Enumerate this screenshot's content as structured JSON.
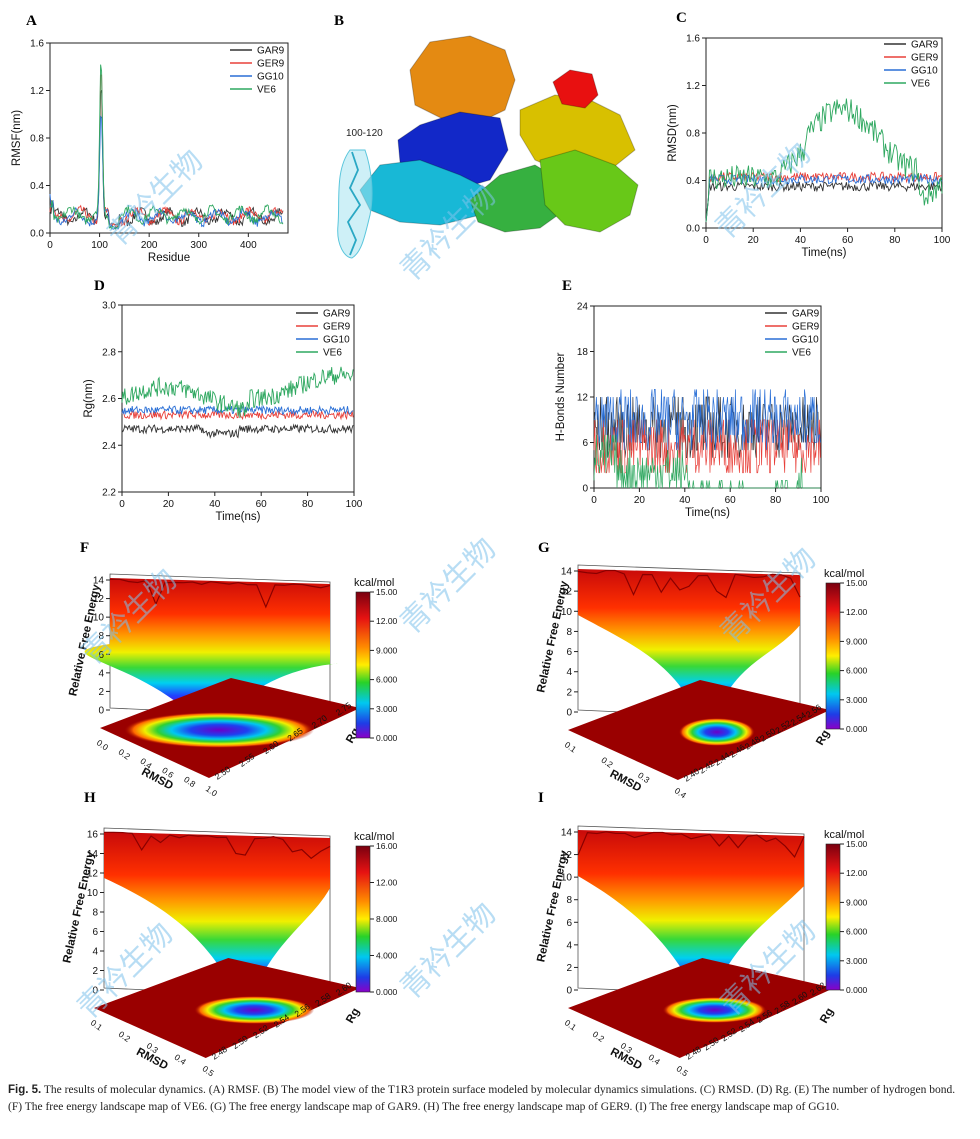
{
  "palette": {
    "GAR9": "#333333",
    "GER9": "#e8403a",
    "GG10": "#2a6fd6",
    "VE6": "#2fa860"
  },
  "watermark": "青衿生物",
  "panel_labels": [
    "A",
    "B",
    "C",
    "D",
    "E",
    "F",
    "G",
    "H",
    "I"
  ],
  "caption": {
    "lead": "Fig. 5.",
    "text": "The results of molecular dynamics. (A) RMSF. (B) The model view of the T1R3 protein surface modeled by molecular dynamics simulations. (C) RMSD. (D) Rg. (E) The number of hydrogen bond. (F) The free energy landscape map of VE6. (G) The free energy landscape map of GAR9. (H) The free energy landscape map of GER9. (I) The free energy landscape map of GG10."
  },
  "protein": {
    "annotation": "100-120"
  },
  "chart_data": [
    {
      "id": "A",
      "type": "line",
      "title": "",
      "xlabel": "Residue",
      "ylabel": "RMSF(nm)",
      "xlim": [
        0,
        480
      ],
      "ylim": [
        0,
        1.6
      ],
      "xticks": [
        "0",
        "100",
        "200",
        "300",
        "400"
      ],
      "yticks": [
        "0.0",
        "0.4",
        "0.8",
        "1.2",
        "1.6"
      ],
      "legend": "top-right",
      "series": [
        {
          "name": "GAR9",
          "peak": 1.3,
          "base": 0.1
        },
        {
          "name": "GER9",
          "peak": 1.38,
          "base": 0.11
        },
        {
          "name": "GG10",
          "peak": 0.95,
          "base": 0.1
        },
        {
          "name": "VE6",
          "peak": 1.4,
          "base": 0.12
        }
      ]
    },
    {
      "id": "C",
      "type": "line",
      "title": "",
      "xlabel": "Time(ns)",
      "ylabel": "RMSD(nm)",
      "xlim": [
        0,
        100
      ],
      "ylim": [
        0,
        1.6
      ],
      "xticks": [
        "0",
        "20",
        "40",
        "60",
        "80",
        "100"
      ],
      "yticks": [
        "0.0",
        "0.4",
        "0.8",
        "1.2",
        "1.6"
      ],
      "legend": "top-right",
      "series": [
        {
          "name": "GAR9",
          "mean": 0.35
        },
        {
          "name": "GER9",
          "mean": 0.43
        },
        {
          "name": "GG10",
          "mean": 0.41
        },
        {
          "name": "VE6",
          "mean_early": 0.42,
          "mean_late": 0.9
        }
      ]
    },
    {
      "id": "D",
      "type": "line",
      "title": "",
      "xlabel": "Time(ns)",
      "ylabel": "Rg(nm)",
      "xlim": [
        0,
        100
      ],
      "ylim": [
        2.2,
        3.0
      ],
      "xticks": [
        "0",
        "20",
        "40",
        "60",
        "80",
        "100"
      ],
      "yticks": [
        "2.2",
        "2.4",
        "2.6",
        "2.8",
        "3.0"
      ],
      "legend": "top-right",
      "series": [
        {
          "name": "GAR9",
          "mean": 2.47
        },
        {
          "name": "GER9",
          "mean": 2.53
        },
        {
          "name": "GG10",
          "mean": 2.55
        },
        {
          "name": "VE6",
          "mean": 2.62
        }
      ]
    },
    {
      "id": "E",
      "type": "line",
      "title": "",
      "xlabel": "Time(ns)",
      "ylabel": "H-Bonds Number",
      "xlim": [
        0,
        100
      ],
      "ylim": [
        0,
        24
      ],
      "xticks": [
        "0",
        "20",
        "40",
        "60",
        "80",
        "100"
      ],
      "yticks": [
        "0",
        "6",
        "12",
        "18",
        "24"
      ],
      "legend": "top-right",
      "series": [
        {
          "name": "GAR9",
          "mean": 8
        },
        {
          "name": "GER9",
          "mean": 5.5
        },
        {
          "name": "GG10",
          "mean": 9
        },
        {
          "name": "VE6",
          "mean": 1.5
        }
      ]
    },
    {
      "id": "F",
      "type": "surface",
      "zlabel": "Relative Free Energy",
      "xlabel": "RMSD",
      "ylabel": "Rg",
      "zticks": [
        "0",
        "2",
        "4",
        "6",
        "8",
        "10",
        "12",
        "14"
      ],
      "xticks": [
        "0.0",
        "0.2",
        "0.4",
        "0.6",
        "0.8",
        "1.0"
      ],
      "yticks": [
        "2.50",
        "2.55",
        "2.60",
        "2.65",
        "2.70",
        "2.75"
      ],
      "colorbar": {
        "unit": "kcal/mol",
        "ticks": [
          "15.00",
          "12.00",
          "9.000",
          "6.000",
          "3.000",
          "0.000"
        ]
      }
    },
    {
      "id": "G",
      "type": "surface",
      "zlabel": "Relative Free Energy",
      "xlabel": "RMSD",
      "ylabel": "Rg",
      "zticks": [
        "0",
        "2",
        "4",
        "6",
        "8",
        "10",
        "12",
        "14"
      ],
      "xticks": [
        "0.1",
        "0.2",
        "0.3",
        "0.4"
      ],
      "yticks": [
        "2.40",
        "2.42",
        "2.44",
        "2.46",
        "2.48",
        "2.50",
        "2.52",
        "2.54",
        "2.56"
      ],
      "colorbar": {
        "unit": "kcal/mol",
        "ticks": [
          "15.00",
          "12.00",
          "9.000",
          "6.000",
          "3.000",
          "0.000"
        ]
      }
    },
    {
      "id": "H",
      "type": "surface",
      "zlabel": "Relative Free Energy",
      "xlabel": "RMSD",
      "ylabel": "Rg",
      "zticks": [
        "0",
        "2",
        "4",
        "6",
        "8",
        "10",
        "12",
        "14",
        "16"
      ],
      "xticks": [
        "0.1",
        "0.2",
        "0.3",
        "0.4",
        "0.5"
      ],
      "yticks": [
        "2.48",
        "2.50",
        "2.52",
        "2.54",
        "2.56",
        "2.58",
        "2.60"
      ],
      "colorbar": {
        "unit": "kcal/mol",
        "ticks": [
          "16.00",
          "12.00",
          "8.000",
          "4.000",
          "0.000"
        ]
      }
    },
    {
      "id": "I",
      "type": "surface",
      "zlabel": "Relative Free Energy",
      "xlabel": "RMSD",
      "ylabel": "Rg",
      "zticks": [
        "0",
        "2",
        "4",
        "6",
        "8",
        "10",
        "12",
        "14"
      ],
      "xticks": [
        "0.1",
        "0.2",
        "0.3",
        "0.4",
        "0.5"
      ],
      "yticks": [
        "2.48",
        "2.50",
        "2.52",
        "2.54",
        "2.56",
        "2.58",
        "2.60",
        "2.62"
      ],
      "colorbar": {
        "unit": "kcal/mol",
        "ticks": [
          "15.00",
          "12.00",
          "9.000",
          "6.000",
          "3.000",
          "0.000"
        ]
      }
    }
  ]
}
